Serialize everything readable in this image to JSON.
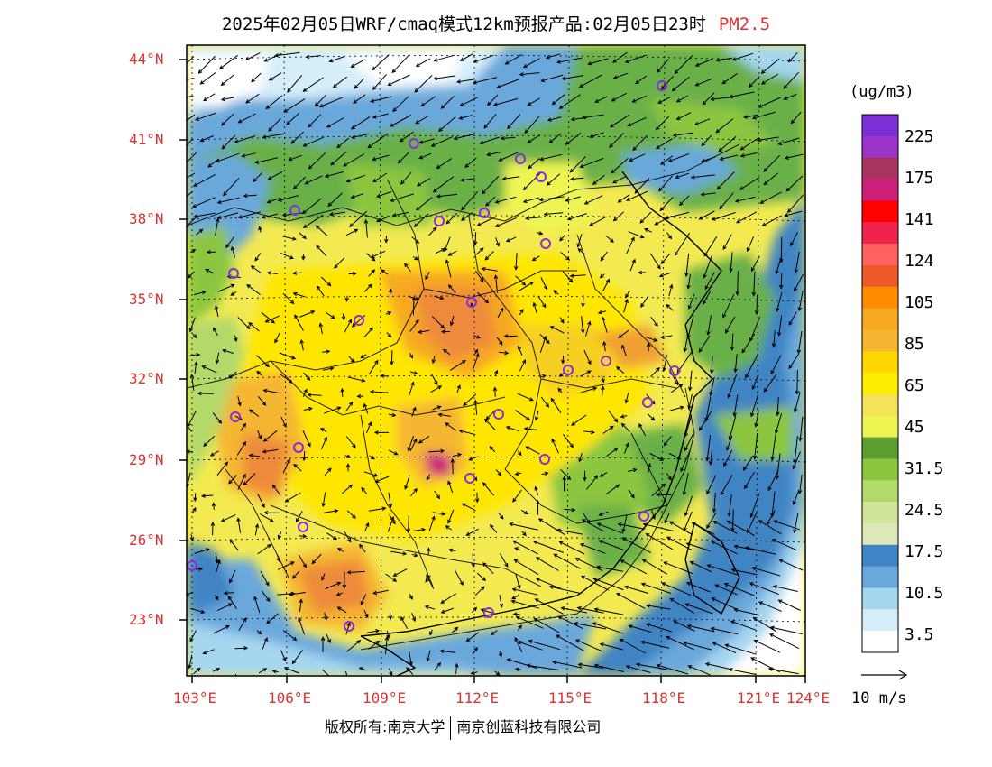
{
  "title": {
    "text": "2025年02月05日WRF/cmaq模式12km预报产品:02月05日23时",
    "pollutant": "PM2.5"
  },
  "axes": {
    "lat_labels": [
      "44°N",
      "41°N",
      "38°N",
      "35°N",
      "32°N",
      "29°N",
      "26°N",
      "23°N"
    ],
    "lon_labels": [
      "103°E",
      "106°E",
      "109°E",
      "112°E",
      "115°E",
      "118°E",
      "121°E",
      "124°E"
    ]
  },
  "legend": {
    "unit": "(ug/m3)",
    "levels": [
      "225",
      "175",
      "141",
      "124",
      "105",
      "85",
      "65",
      "45",
      "31.5",
      "24.5",
      "17.5",
      "10.5",
      "3.5"
    ],
    "colors": [
      "#7b2fd6",
      "#9b34c9",
      "#a8345e",
      "#cc1f7a",
      "#ff0000",
      "#f0234e",
      "#ff6060",
      "#ee5a2a",
      "#ff8c00",
      "#f7a823",
      "#f5b632",
      "#ffd700",
      "#ffee00",
      "#f5e35a",
      "#eef552",
      "#5b9e2e",
      "#8cc63f",
      "#b2d96b",
      "#cfe59a",
      "#dce8b8",
      "#3f84c4",
      "#6aa8dc",
      "#a6d6f0",
      "#d6eef9",
      "#ffffff"
    ]
  },
  "wind_reference": "10 m/s",
  "copyright": {
    "left": "版权所有:南京大学",
    "right": "南京创蓝科技有限公司"
  }
}
